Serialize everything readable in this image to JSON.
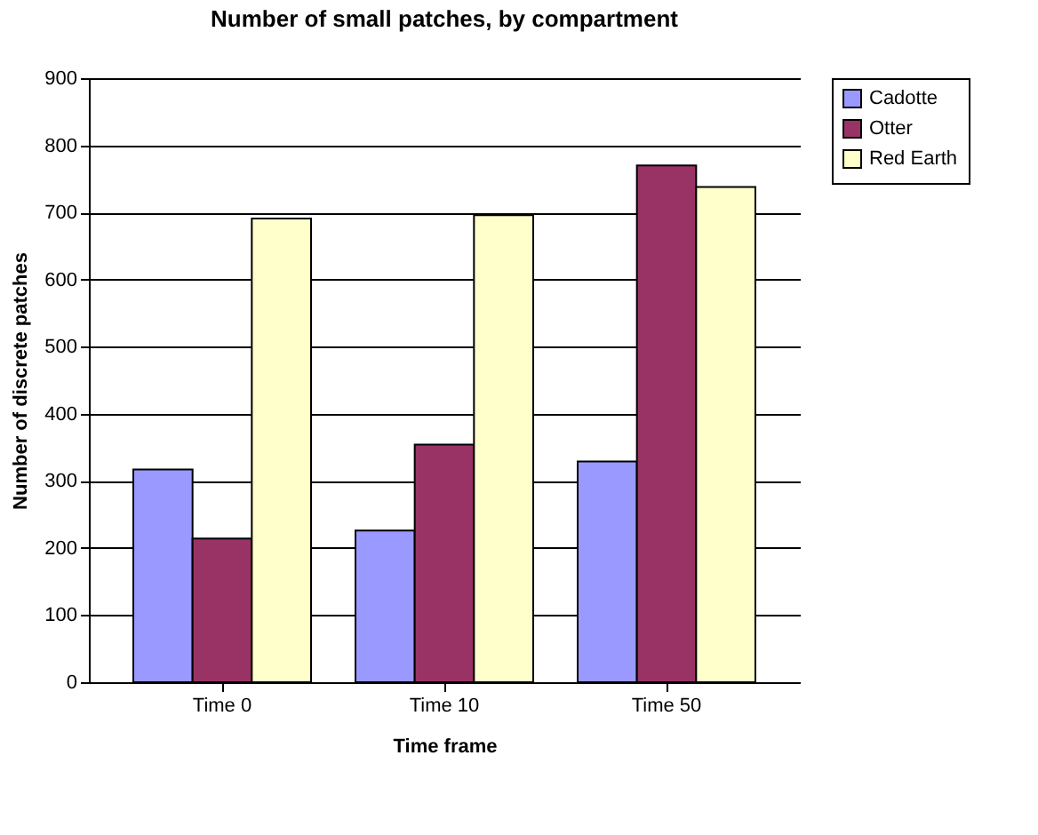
{
  "chart_data": {
    "type": "bar",
    "title": "Number of small patches, by compartment",
    "xlabel": "Time frame",
    "ylabel": "Number of discrete patches",
    "categories": [
      "Time 0",
      "Time 10",
      "Time 50"
    ],
    "series": [
      {
        "name": "Cadotte",
        "color": "#9999ff",
        "values": [
          317,
          226,
          329
        ]
      },
      {
        "name": "Otter",
        "color": "#993366",
        "values": [
          214,
          354,
          770
        ]
      },
      {
        "name": "Red Earth",
        "color": "#ffffcc",
        "values": [
          691,
          696,
          738
        ]
      }
    ],
    "ylim": [
      0,
      900
    ],
    "yticks": [
      0,
      100,
      200,
      300,
      400,
      500,
      600,
      700,
      800,
      900
    ],
    "grid": "y",
    "legend": "right"
  }
}
